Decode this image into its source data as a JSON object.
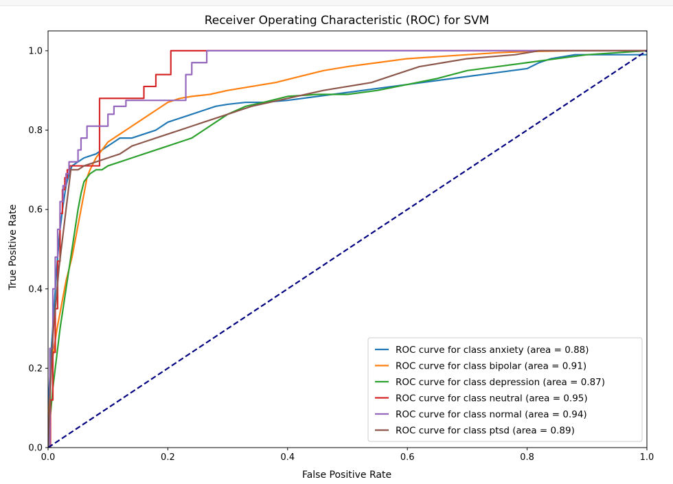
{
  "chart_data": {
    "type": "line",
    "title": "Receiver Operating Characteristic (ROC) for SVM",
    "xlabel": "False Positive Rate",
    "ylabel": "True Positive Rate",
    "xlim": [
      0.0,
      1.0
    ],
    "ylim": [
      0.0,
      1.05
    ],
    "xticks": [
      0.0,
      0.2,
      0.4,
      0.6,
      0.8,
      1.0
    ],
    "yticks": [
      0.0,
      0.2,
      0.4,
      0.6,
      0.8,
      1.0
    ],
    "xtick_labels": [
      "0.0",
      "0.2",
      "0.4",
      "0.6",
      "0.8",
      "1.0"
    ],
    "ytick_labels": [
      "0.0",
      "0.2",
      "0.4",
      "0.6",
      "0.8",
      "1.0"
    ],
    "grid": false,
    "legend_position": "lower right",
    "series": [
      {
        "name": "ROC curve for class anxiety (area = 0.88)",
        "color": "#1f77b4",
        "x": [
          0.0,
          0.0,
          0.003,
          0.006,
          0.01,
          0.013,
          0.016,
          0.02,
          0.025,
          0.03,
          0.035,
          0.04,
          0.05,
          0.06,
          0.08,
          0.09,
          0.11,
          0.12,
          0.14,
          0.16,
          0.18,
          0.2,
          0.22,
          0.24,
          0.26,
          0.28,
          0.3,
          0.33,
          0.36,
          0.4,
          0.45,
          0.5,
          0.55,
          0.6,
          0.65,
          0.7,
          0.75,
          0.8,
          0.82,
          0.84,
          0.86,
          0.88,
          0.9,
          1.0
        ],
        "y": [
          0.0,
          0.1,
          0.18,
          0.26,
          0.35,
          0.42,
          0.48,
          0.55,
          0.61,
          0.66,
          0.69,
          0.71,
          0.72,
          0.73,
          0.74,
          0.75,
          0.77,
          0.78,
          0.78,
          0.79,
          0.8,
          0.82,
          0.83,
          0.84,
          0.85,
          0.86,
          0.865,
          0.87,
          0.87,
          0.875,
          0.885,
          0.895,
          0.905,
          0.915,
          0.925,
          0.935,
          0.945,
          0.955,
          0.97,
          0.98,
          0.985,
          0.99,
          0.99,
          0.99
        ]
      },
      {
        "name": "ROC curve for class bipolar (area = 0.91)",
        "color": "#ff7f0e",
        "x": [
          0.0,
          0.002,
          0.005,
          0.01,
          0.015,
          0.02,
          0.025,
          0.03,
          0.035,
          0.04,
          0.045,
          0.05,
          0.055,
          0.06,
          0.065,
          0.07,
          0.08,
          0.09,
          0.1,
          0.12,
          0.14,
          0.16,
          0.18,
          0.2,
          0.22,
          0.24,
          0.27,
          0.3,
          0.34,
          0.38,
          0.42,
          0.46,
          0.5,
          0.55,
          0.6,
          0.65,
          0.7,
          0.75,
          0.8,
          0.88,
          1.0
        ],
        "y": [
          0.0,
          0.1,
          0.2,
          0.25,
          0.3,
          0.34,
          0.38,
          0.42,
          0.45,
          0.48,
          0.52,
          0.56,
          0.6,
          0.64,
          0.68,
          0.7,
          0.73,
          0.75,
          0.77,
          0.79,
          0.81,
          0.83,
          0.85,
          0.87,
          0.88,
          0.885,
          0.89,
          0.9,
          0.91,
          0.92,
          0.935,
          0.95,
          0.96,
          0.97,
          0.98,
          0.985,
          0.99,
          0.995,
          0.998,
          1.0,
          1.0
        ]
      },
      {
        "name": "ROC curve for class depression (area = 0.87)",
        "color": "#2ca02c",
        "x": [
          0.0,
          0.002,
          0.005,
          0.008,
          0.012,
          0.016,
          0.02,
          0.025,
          0.03,
          0.035,
          0.04,
          0.045,
          0.05,
          0.055,
          0.06,
          0.07,
          0.08,
          0.09,
          0.1,
          0.12,
          0.14,
          0.16,
          0.18,
          0.2,
          0.22,
          0.24,
          0.26,
          0.28,
          0.3,
          0.33,
          0.36,
          0.4,
          0.45,
          0.5,
          0.55,
          0.6,
          0.65,
          0.7,
          0.75,
          0.8,
          0.85,
          0.9,
          1.0
        ],
        "y": [
          0.0,
          0.05,
          0.1,
          0.15,
          0.2,
          0.25,
          0.3,
          0.35,
          0.4,
          0.45,
          0.5,
          0.55,
          0.6,
          0.64,
          0.67,
          0.69,
          0.7,
          0.7,
          0.71,
          0.72,
          0.73,
          0.74,
          0.75,
          0.76,
          0.77,
          0.78,
          0.8,
          0.82,
          0.84,
          0.86,
          0.87,
          0.885,
          0.89,
          0.89,
          0.9,
          0.915,
          0.93,
          0.95,
          0.96,
          0.97,
          0.98,
          0.99,
          1.0
        ]
      },
      {
        "name": "ROC curve for class neutral (area = 0.95)",
        "color": "#d62728",
        "x": [
          0.0,
          0.004,
          0.004,
          0.008,
          0.008,
          0.012,
          0.012,
          0.016,
          0.016,
          0.02,
          0.02,
          0.024,
          0.024,
          0.028,
          0.028,
          0.032,
          0.032,
          0.036,
          0.036,
          0.086,
          0.086,
          0.16,
          0.16,
          0.18,
          0.18,
          0.205,
          0.205,
          1.0
        ],
        "y": [
          0.0,
          0.0,
          0.12,
          0.12,
          0.24,
          0.24,
          0.35,
          0.35,
          0.47,
          0.47,
          0.59,
          0.59,
          0.65,
          0.65,
          0.68,
          0.68,
          0.7,
          0.7,
          0.71,
          0.71,
          0.88,
          0.88,
          0.91,
          0.91,
          0.94,
          0.94,
          1.0,
          1.0
        ]
      },
      {
        "name": "ROC curve for class normal (area = 0.94)",
        "color": "#9467bd",
        "x": [
          0.0,
          0.003,
          0.003,
          0.008,
          0.008,
          0.012,
          0.012,
          0.016,
          0.016,
          0.02,
          0.02,
          0.025,
          0.025,
          0.03,
          0.03,
          0.035,
          0.035,
          0.05,
          0.05,
          0.055,
          0.055,
          0.065,
          0.065,
          0.085,
          0.085,
          0.1,
          0.1,
          0.11,
          0.11,
          0.13,
          0.13,
          0.23,
          0.23,
          0.24,
          0.24,
          0.265,
          0.265,
          1.0
        ],
        "y": [
          0.0,
          0.0,
          0.25,
          0.25,
          0.4,
          0.4,
          0.48,
          0.48,
          0.55,
          0.55,
          0.62,
          0.62,
          0.66,
          0.66,
          0.69,
          0.69,
          0.72,
          0.72,
          0.75,
          0.75,
          0.78,
          0.78,
          0.81,
          0.81,
          0.81,
          0.81,
          0.84,
          0.84,
          0.86,
          0.86,
          0.875,
          0.875,
          0.94,
          0.94,
          0.97,
          0.97,
          1.0,
          1.0
        ]
      },
      {
        "name": "ROC curve for class ptsd (area = 0.89)",
        "color": "#8c564b",
        "x": [
          0.0,
          0.002,
          0.004,
          0.006,
          0.008,
          0.01,
          0.014,
          0.018,
          0.022,
          0.026,
          0.03,
          0.034,
          0.038,
          0.05,
          0.06,
          0.08,
          0.1,
          0.12,
          0.14,
          0.16,
          0.18,
          0.2,
          0.22,
          0.24,
          0.26,
          0.28,
          0.3,
          0.32,
          0.34,
          0.37,
          0.4,
          0.43,
          0.46,
          0.5,
          0.54,
          0.58,
          0.62,
          0.66,
          0.7,
          0.74,
          0.78,
          0.82,
          1.0
        ],
        "y": [
          0.0,
          0.08,
          0.15,
          0.22,
          0.28,
          0.32,
          0.38,
          0.45,
          0.5,
          0.55,
          0.6,
          0.65,
          0.7,
          0.7,
          0.71,
          0.72,
          0.73,
          0.74,
          0.76,
          0.77,
          0.78,
          0.79,
          0.8,
          0.81,
          0.82,
          0.83,
          0.84,
          0.85,
          0.86,
          0.87,
          0.88,
          0.89,
          0.9,
          0.91,
          0.92,
          0.94,
          0.96,
          0.97,
          0.98,
          0.985,
          0.99,
          1.0,
          1.0
        ]
      },
      {
        "name": "",
        "color": "#000080",
        "dashed": true,
        "x": [
          0.0,
          1.0
        ],
        "y": [
          0.0,
          1.0
        ]
      }
    ]
  }
}
